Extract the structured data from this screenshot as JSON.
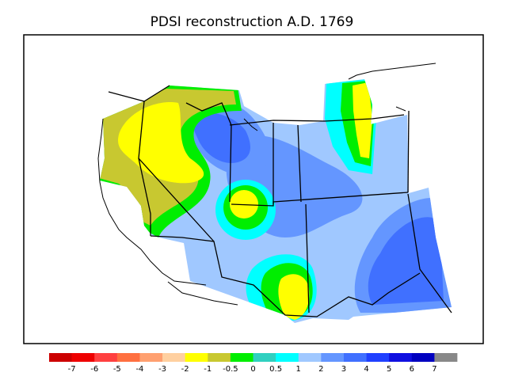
{
  "map": {
    "title": "PDSI reconstruction A.D. 1769",
    "background_color": "#ffffff",
    "outline_color": "#000000"
  },
  "legend": {
    "bins": [
      {
        "color": "#cc0000"
      },
      {
        "color": "#ee0000"
      },
      {
        "color": "#ff4040"
      },
      {
        "color": "#ff7040"
      },
      {
        "color": "#ffa070"
      },
      {
        "color": "#ffd0a0"
      },
      {
        "color": "#ffff00"
      },
      {
        "color": "#c8c830"
      },
      {
        "color": "#00ee00"
      },
      {
        "color": "#30d0c0"
      },
      {
        "color": "#00ffff"
      },
      {
        "color": "#a0c8ff"
      },
      {
        "color": "#6496ff"
      },
      {
        "color": "#4070ff"
      },
      {
        "color": "#2040ff"
      },
      {
        "color": "#1010e0"
      },
      {
        "color": "#0000c0"
      },
      {
        "color": "#888888"
      }
    ],
    "tick_labels": [
      "-7",
      "-6",
      "-5",
      "-4",
      "-3",
      "-2",
      "-1",
      "-0.5",
      "0",
      "0.5",
      "1",
      "2",
      "3",
      "4",
      "5",
      "6",
      "7"
    ]
  }
}
